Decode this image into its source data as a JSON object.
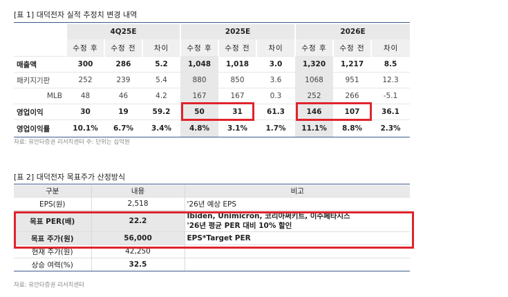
{
  "table1": {
    "caption": "[표 1] 대덕전자 실적 추정치 변경 내역",
    "groups": [
      "4Q25E",
      "2025E",
      "2026E"
    ],
    "subheaders": [
      "수정 후",
      "수정 전",
      "차이"
    ],
    "rows": [
      {
        "label": "매출액",
        "cells": [
          "300",
          "286",
          "5.2",
          "1,048",
          "1,018",
          "3.0",
          "1,320",
          "1,217",
          "8.5"
        ]
      },
      {
        "label": "패키지기판",
        "cells": [
          "252",
          "239",
          "5.4",
          "880",
          "850",
          "3.6",
          "1068",
          "951",
          "12.3"
        ]
      },
      {
        "label": "MLB",
        "cells": [
          "48",
          "46",
          "4.2",
          "167",
          "167",
          "0.3",
          "252",
          "266",
          "-5.1"
        ]
      },
      {
        "label": "영업이익",
        "cells": [
          "30",
          "19",
          "59.2",
          "50",
          "31",
          "61.3",
          "146",
          "107",
          "36.1"
        ]
      },
      {
        "label": "영업이익률",
        "cells": [
          "10.1%",
          "6.7%",
          "3.4%",
          "4.8%",
          "3.1%",
          "1.7%",
          "11.1%",
          "8.8%",
          "2.3%"
        ]
      }
    ],
    "note": "자료: 유안타증권 리서치센터 주: 단위는 십억원"
  },
  "table2": {
    "caption": "[표 2] 대덕전자 목표주가 산정방식",
    "headers": [
      "구분",
      "내용",
      "비고"
    ],
    "rows": [
      {
        "label": "EPS(원)",
        "value": "2,518",
        "remark": "'26년 예상 EPS",
        "remark2": ""
      },
      {
        "label": "목표 PER(배)",
        "value": "22.2",
        "remark": "Ibiden, Unimicron, 코리아써키트, 이수페타시스",
        "remark2": "'26년 평균 PER 대비 10% 할인"
      },
      {
        "label": "목표 주가(원)",
        "value": "56,000",
        "remark": "EPS*Target PER",
        "remark2": ""
      },
      {
        "label": "현재 주가(원)",
        "value": "42,250",
        "remark": "",
        "remark2": ""
      },
      {
        "label": "상승 여력(%)",
        "value": "32.5",
        "remark": "",
        "remark2": ""
      }
    ],
    "note": "자료: 유안타증권 리서치센터"
  },
  "colors": {
    "highlight": "#e0232b",
    "rule": "#3a5a8a",
    "shade": "#e8e8e8"
  }
}
